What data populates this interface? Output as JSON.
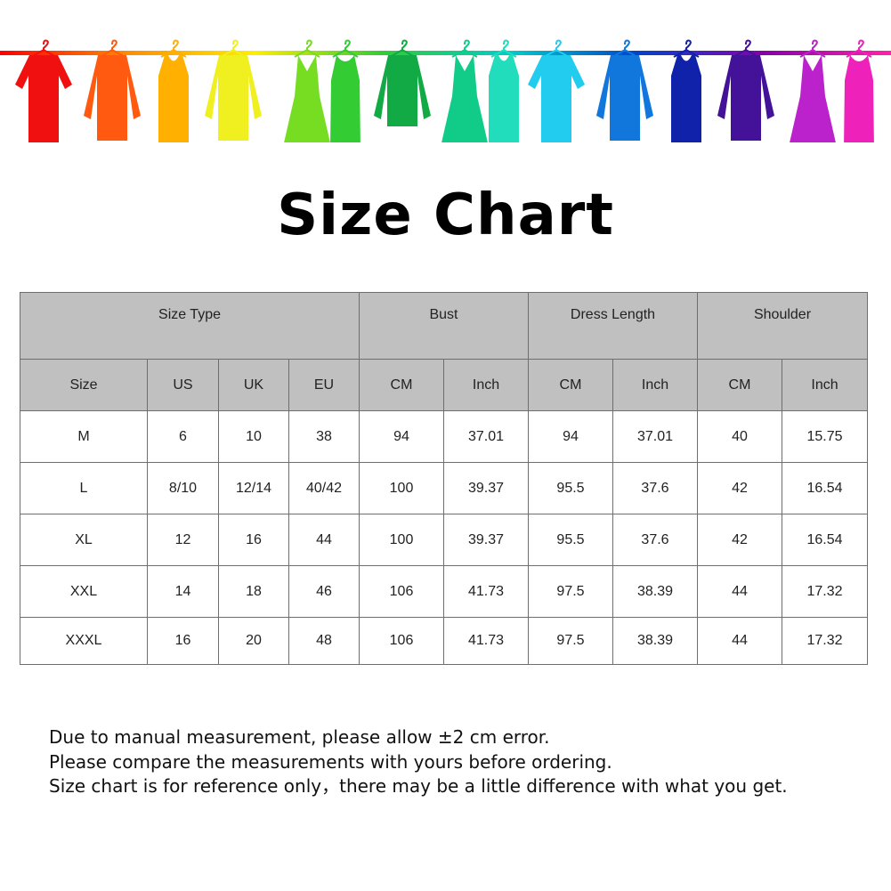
{
  "banner": {
    "rod_gradient": [
      "#ff0000",
      "#ff8c00",
      "#ffee00",
      "#33cc33",
      "#00cccc",
      "#0044cc",
      "#8800aa",
      "#ff22aa"
    ],
    "garments": [
      {
        "type": "tshirt",
        "color": "#f01010"
      },
      {
        "type": "shirt",
        "color": "#ff5a10"
      },
      {
        "type": "tank",
        "color": "#ffb000"
      },
      {
        "type": "sweater",
        "color": "#f0f020"
      },
      {
        "type": "dress",
        "color": "#77dd22"
      },
      {
        "type": "tankdress",
        "color": "#33cc33"
      },
      {
        "type": "longsleeve",
        "color": "#11aa44"
      },
      {
        "type": "dress",
        "color": "#11cc88"
      },
      {
        "type": "tank",
        "color": "#22ddbb"
      },
      {
        "type": "tshirt",
        "color": "#22ccee"
      },
      {
        "type": "shirt",
        "color": "#1177dd"
      },
      {
        "type": "tank",
        "color": "#1122aa"
      },
      {
        "type": "sweater",
        "color": "#441199"
      },
      {
        "type": "dress",
        "color": "#bb22cc"
      },
      {
        "type": "tankdress",
        "color": "#ee22bb"
      }
    ]
  },
  "title": "Size Chart",
  "table": {
    "groups": [
      "Size Type",
      "Bust",
      "Dress Length",
      "Shoulder"
    ],
    "columns": [
      "Size",
      "US",
      "UK",
      "EU",
      "CM",
      "Inch",
      "CM",
      "Inch",
      "CM",
      "Inch"
    ],
    "rows": [
      [
        "M",
        "6",
        "10",
        "38",
        "94",
        "37.01",
        "94",
        "37.01",
        "40",
        "15.75"
      ],
      [
        "L",
        "8/10",
        "12/14",
        "40/42",
        "100",
        "39.37",
        "95.5",
        "37.6",
        "42",
        "16.54"
      ],
      [
        "XL",
        "12",
        "16",
        "44",
        "100",
        "39.37",
        "95.5",
        "37.6",
        "42",
        "16.54"
      ],
      [
        "XXL",
        "14",
        "18",
        "46",
        "106",
        "41.73",
        "97.5",
        "38.39",
        "44",
        "17.32"
      ],
      [
        "XXXL",
        "16",
        "20",
        "48",
        "106",
        "41.73",
        "97.5",
        "38.39",
        "44",
        "17.32"
      ]
    ],
    "header_color": "#c0c0c0"
  },
  "notes": [
    "Due to manual measurement, please allow ±2 cm error.",
    "Please compare the measurements with yours before ordering.",
    "Size chart is for reference only，there may be a little difference with what you get."
  ]
}
